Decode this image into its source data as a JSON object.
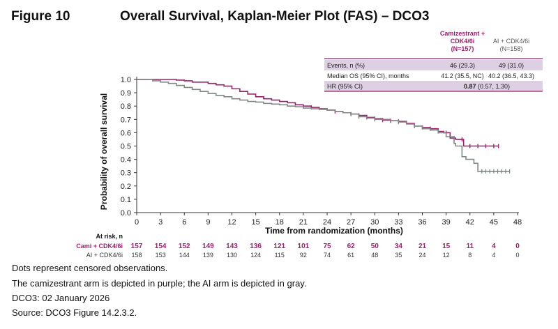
{
  "figure": {
    "label": "Figure 10",
    "title": "Overall Survival, Kaplan-Meier Plot (FAS) – DCO3"
  },
  "colors": {
    "cami": "#9c1f6e",
    "ai": "#7f8883",
    "band": "#ddd0e3"
  },
  "summary_table": {
    "headers": [
      {
        "lines": [
          "Camizestrant +",
          "CDK4/6i",
          "(N=157)"
        ],
        "color": "#9c1f6e"
      },
      {
        "lines": [
          "AI + CDK4/6i",
          "(N=158)"
        ],
        "color": "#555555"
      }
    ],
    "rows": [
      {
        "label": "Events, n (%)",
        "cami": "46 (29.3)",
        "ai": "49 (31.0)"
      },
      {
        "label": "Median OS (95% CI), months",
        "cami": "41.2 (35.5, NC)",
        "ai": "40.2 (36.5, 43.3)"
      },
      {
        "label": "HR (95% CI)",
        "hr_bold": "0.87",
        "hr_rest": " (0.57, 1.30)"
      }
    ]
  },
  "at_risk": {
    "title": "At risk, n",
    "rows": [
      {
        "label": "Cami + CDK4/6i",
        "values": [
          "157",
          "154",
          "152",
          "149",
          "143",
          "136",
          "121",
          "101",
          "75",
          "62",
          "50",
          "34",
          "21",
          "15",
          "11",
          "4",
          "0"
        ]
      },
      {
        "label": "AI + CDK4/6i",
        "values": [
          "158",
          "153",
          "144",
          "139",
          "130",
          "124",
          "115",
          "92",
          "74",
          "61",
          "48",
          "35",
          "24",
          "12",
          "8",
          "4",
          "0"
        ]
      }
    ]
  },
  "notes": [
    "Dots represent censored observations.",
    "The camizestrant arm is depicted in purple; the AI arm is depicted in gray.",
    "DCO3: 02 January 2026",
    "Source: DCO3 Figure 14.2.3.2."
  ],
  "chart_data": {
    "type": "line",
    "xlabel": "Time from randomization (months)",
    "ylabel": "Probability of overall survival",
    "xlim": [
      0,
      48
    ],
    "ylim": [
      0,
      1.0
    ],
    "xticks": [
      0,
      3,
      6,
      9,
      12,
      15,
      18,
      21,
      24,
      27,
      30,
      33,
      36,
      39,
      42,
      45,
      48
    ],
    "yticks": [
      0,
      0.1,
      0.2,
      0.3,
      0.4,
      0.5,
      0.6,
      0.7,
      0.8,
      0.9,
      1.0
    ],
    "series": [
      {
        "name": "Cami + CDK4/6i",
        "color": "#9c1f6e",
        "x": [
          0,
          1,
          2,
          3,
          5,
          6,
          7,
          9,
          10,
          11,
          12,
          13,
          14,
          15,
          16,
          17,
          18,
          19,
          20,
          21,
          22,
          23,
          24,
          25,
          26,
          27,
          28,
          29,
          30,
          31,
          32,
          33,
          34,
          35,
          36,
          37,
          38,
          38.7,
          39.5,
          40.2,
          41.2,
          42,
          43,
          45.6
        ],
        "y": [
          1.0,
          1.0,
          1.0,
          1.0,
          0.995,
          0.99,
          0.98,
          0.97,
          0.96,
          0.95,
          0.93,
          0.91,
          0.89,
          0.87,
          0.855,
          0.845,
          0.835,
          0.825,
          0.81,
          0.8,
          0.79,
          0.78,
          0.77,
          0.76,
          0.75,
          0.74,
          0.73,
          0.715,
          0.705,
          0.695,
          0.69,
          0.685,
          0.67,
          0.65,
          0.64,
          0.63,
          0.61,
          0.6,
          0.56,
          0.55,
          0.5,
          0.5,
          0.5,
          0.5
        ],
        "censored_x": [
          22,
          25,
          27,
          28,
          29,
          30,
          31,
          32,
          33,
          35,
          36,
          37,
          38,
          39,
          40,
          41,
          42,
          43,
          44,
          45,
          45.6
        ]
      },
      {
        "name": "AI + CDK4/6i",
        "color": "#7f8883",
        "x": [
          0,
          1,
          2,
          3,
          4,
          5,
          6,
          7,
          8,
          9,
          10,
          11,
          12,
          13,
          14,
          15,
          16,
          17,
          18,
          19,
          20,
          21,
          22,
          23,
          24,
          25,
          26,
          27,
          28,
          29,
          30,
          31,
          32,
          33,
          34,
          35,
          36,
          37,
          38,
          39,
          40,
          40.2,
          41,
          41.5,
          42.5,
          43,
          47
        ],
        "y": [
          1.0,
          1.0,
          0.99,
          0.98,
          0.97,
          0.955,
          0.94,
          0.925,
          0.91,
          0.895,
          0.88,
          0.87,
          0.855,
          0.845,
          0.835,
          0.83,
          0.82,
          0.815,
          0.81,
          0.8,
          0.795,
          0.785,
          0.78,
          0.775,
          0.77,
          0.76,
          0.75,
          0.74,
          0.72,
          0.71,
          0.7,
          0.7,
          0.69,
          0.68,
          0.665,
          0.65,
          0.63,
          0.62,
          0.6,
          0.57,
          0.52,
          0.5,
          0.42,
          0.4,
          0.37,
          0.31,
          0.31
        ],
        "censored_x": [
          27,
          28,
          30,
          33,
          35,
          43.5,
          44,
          44.5,
          45,
          45.5,
          46,
          46.5,
          47
        ]
      }
    ]
  }
}
